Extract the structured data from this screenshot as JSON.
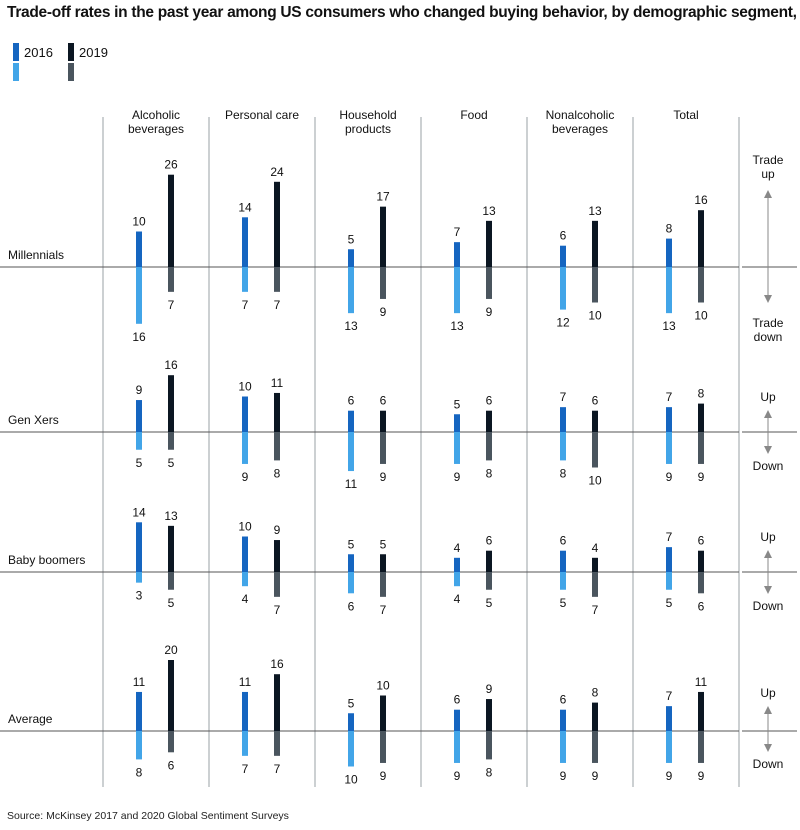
{
  "title": "Trade-off rates in the past year among US consumers who changed buying behavior, by demographic segment, %",
  "source": "Source: McKinsey 2017 and 2020 Global Sentiment Surveys",
  "legend": [
    {
      "label": "2016",
      "color_up": "#1565c0",
      "color_down": "#42a5e8"
    },
    {
      "label": "2019",
      "color_up": "#0b1622",
      "color_down": "#4a555e"
    }
  ],
  "chart_data": {
    "type": "bar",
    "categories": [
      "Alcoholic beverages",
      "Personal care",
      "Household products",
      "Food",
      "Nonalcoholic beverages",
      "Total"
    ],
    "segments": [
      "Millennials",
      "Gen Xers",
      "Baby boomers",
      "Average"
    ],
    "direction_labels": [
      {
        "up": "Trade up",
        "down": "Trade down"
      },
      {
        "up": "Up",
        "down": "Down"
      },
      {
        "up": "Up",
        "down": "Down"
      },
      {
        "up": "Up",
        "down": "Down"
      }
    ],
    "series": [
      {
        "name": "2016",
        "trade_up": [
          [
            10,
            14,
            5,
            7,
            6,
            8
          ],
          [
            9,
            10,
            6,
            5,
            7,
            7
          ],
          [
            14,
            10,
            5,
            4,
            6,
            7
          ],
          [
            11,
            11,
            5,
            6,
            6,
            7
          ]
        ],
        "trade_down": [
          [
            16,
            7,
            13,
            13,
            12,
            13
          ],
          [
            5,
            9,
            11,
            9,
            8,
            9
          ],
          [
            3,
            4,
            6,
            4,
            5,
            5
          ],
          [
            8,
            7,
            10,
            9,
            9,
            9
          ]
        ]
      },
      {
        "name": "2019",
        "trade_up": [
          [
            26,
            24,
            17,
            13,
            13,
            16
          ],
          [
            16,
            11,
            6,
            6,
            6,
            8
          ],
          [
            13,
            9,
            5,
            6,
            4,
            6
          ],
          [
            20,
            16,
            10,
            9,
            8,
            11
          ]
        ],
        "trade_down": [
          [
            7,
            7,
            9,
            9,
            10,
            10
          ],
          [
            5,
            8,
            9,
            8,
            10,
            9
          ],
          [
            5,
            7,
            7,
            5,
            7,
            6
          ],
          [
            6,
            7,
            9,
            8,
            9,
            9
          ]
        ]
      }
    ]
  }
}
